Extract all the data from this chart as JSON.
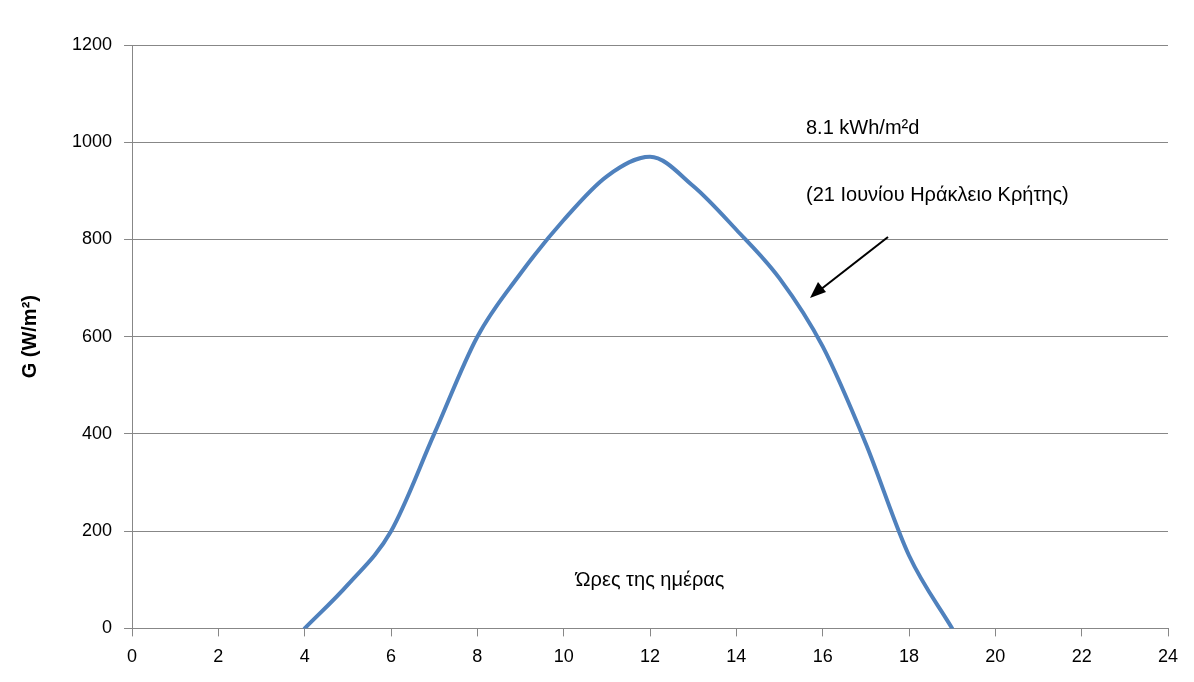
{
  "chart_data": {
    "type": "line",
    "xlabel": "Ώρες της ημέρας",
    "ylabel": "G (W/m²)",
    "annotations": [
      "8.1 kWh/m²d",
      "(21 Ιουνίου Ηράκλειο Κρήτης)"
    ],
    "x": [
      4,
      5,
      6,
      7,
      8,
      9,
      10,
      11,
      12,
      13,
      14,
      15,
      16,
      17,
      18,
      19
    ],
    "series": [
      {
        "color": "#4f81bd",
        "values": [
          0,
          90,
          200,
          400,
          600,
          730,
          840,
          930,
          970,
          910,
          820,
          720,
          580,
          380,
          150,
          0
        ]
      }
    ],
    "xlim": [
      0,
      24
    ],
    "xticks": [
      0,
      2,
      4,
      6,
      8,
      10,
      12,
      14,
      16,
      18,
      20,
      22,
      24
    ],
    "ylim": [
      0,
      1200
    ],
    "yticks": [
      0,
      200,
      400,
      600,
      800,
      1000,
      1200
    ],
    "grid": "y",
    "legend": false,
    "marker": "none",
    "line_style": "solid"
  }
}
